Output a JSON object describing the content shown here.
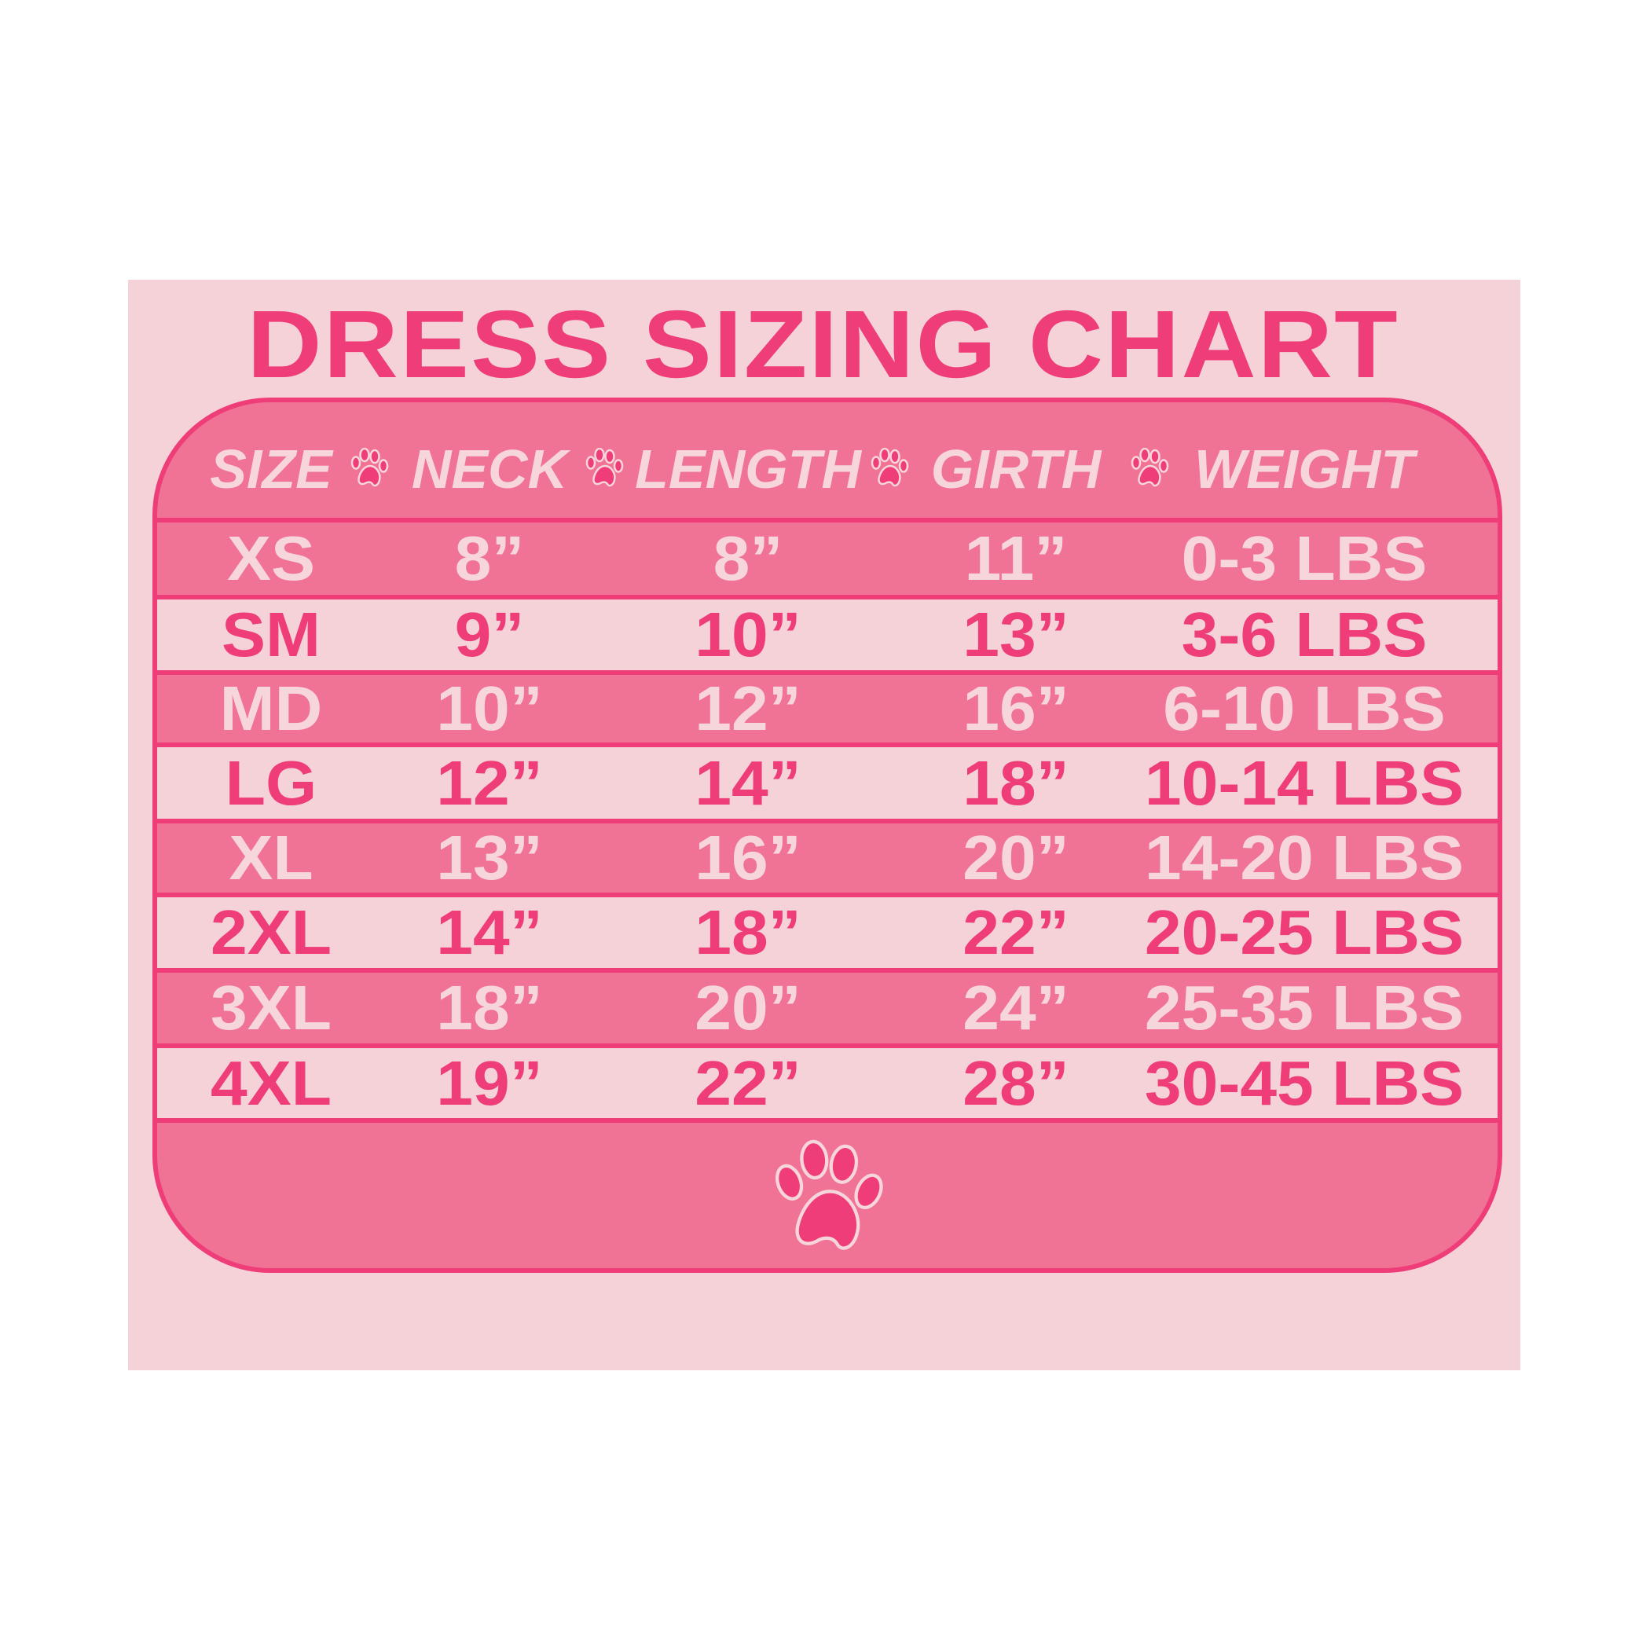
{
  "title": "DRESS SIZING CHART",
  "colors": {
    "background": "#ffffff",
    "panel": "#f5d2d7",
    "accent": "#ee3d78",
    "row_dark": "#f07295",
    "row_light": "#f5d2d7",
    "text_light": "#f7d6db"
  },
  "header": [
    "SIZE",
    "NECK",
    "LENGTH",
    "GIRTH",
    "WEIGHT"
  ],
  "separator_icon": "paw-print-icon",
  "rows": [
    {
      "size": "XS",
      "neck": "8”",
      "length": "8”",
      "girth": "11”",
      "weight": "0-3 LBS"
    },
    {
      "size": "SM",
      "neck": "9”",
      "length": "10”",
      "girth": "13”",
      "weight": "3-6 LBS"
    },
    {
      "size": "MD",
      "neck": "10”",
      "length": "12”",
      "girth": "16”",
      "weight": "6-10 LBS"
    },
    {
      "size": "LG",
      "neck": "12”",
      "length": "14”",
      "girth": "18”",
      "weight": "10-14 LBS"
    },
    {
      "size": "XL",
      "neck": "13”",
      "length": "16”",
      "girth": "20”",
      "weight": "14-20 LBS"
    },
    {
      "size": "2XL",
      "neck": "14”",
      "length": "18”",
      "girth": "22”",
      "weight": "20-25 LBS"
    },
    {
      "size": "3XL",
      "neck": "18”",
      "length": "20”",
      "girth": "24”",
      "weight": "25-35 LBS"
    },
    {
      "size": "4XL",
      "neck": "19”",
      "length": "22”",
      "girth": "28”",
      "weight": "30-45 LBS"
    }
  ],
  "footer_icon": "paw-print-icon"
}
